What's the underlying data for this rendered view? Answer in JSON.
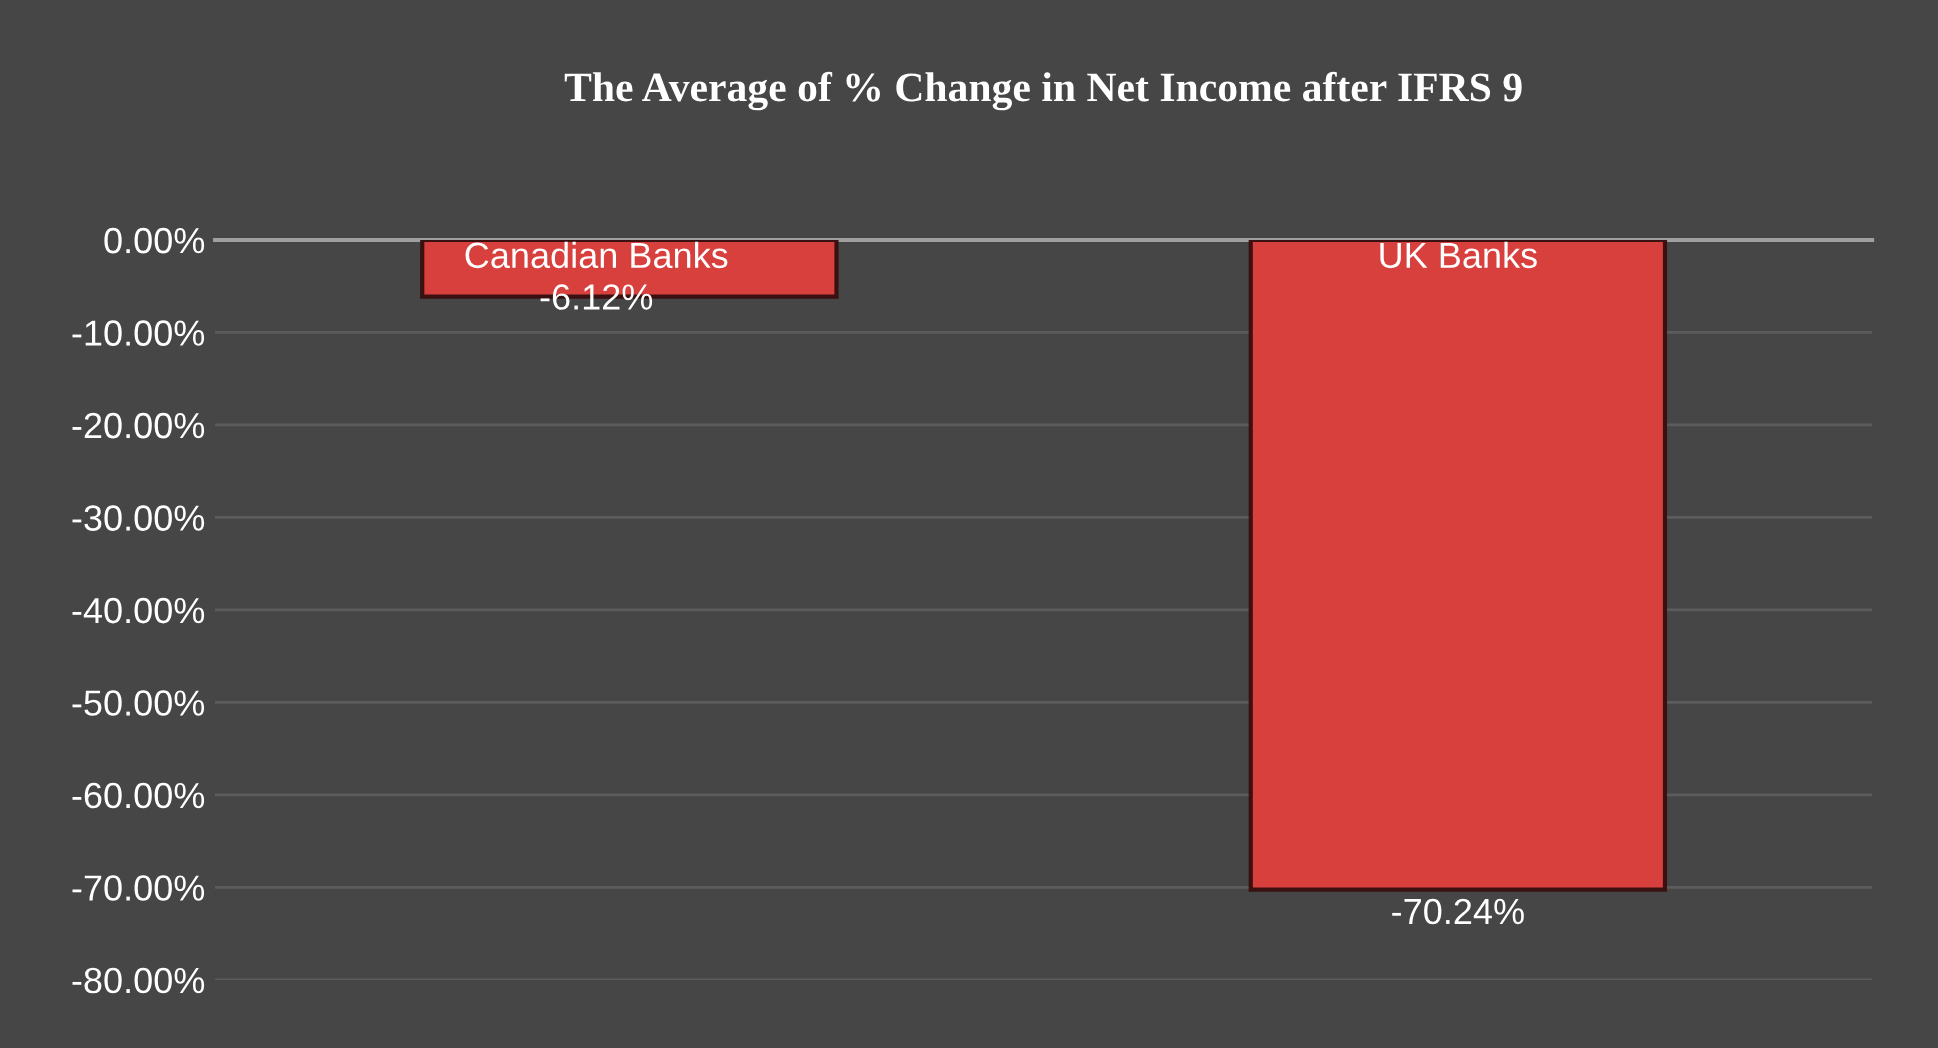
{
  "chart_data": {
    "type": "bar",
    "title": "The Average of % Change in Net Income after IFRS 9",
    "categories": [
      "Canadian Banks",
      "UK Banks"
    ],
    "values": [
      -6.12,
      -70.24
    ],
    "value_labels": [
      "-6.12%",
      "-70.24%"
    ],
    "color": "#d8403d",
    "ylim": [
      -80,
      0
    ],
    "yticks": [
      {
        "value": 0,
        "label": "0.00%"
      },
      {
        "value": -10,
        "label": "-10.00%"
      },
      {
        "value": -20,
        "label": "-20.00%"
      },
      {
        "value": -30,
        "label": "-30.00%"
      },
      {
        "value": -40,
        "label": "-40.00%"
      },
      {
        "value": -50,
        "label": "-50.00%"
      },
      {
        "value": -60,
        "label": "-60.00%"
      },
      {
        "value": -70,
        "label": "-70.00%"
      },
      {
        "value": -80,
        "label": "-80.00%"
      }
    ],
    "tick_labels": "y",
    "grid": "y"
  }
}
